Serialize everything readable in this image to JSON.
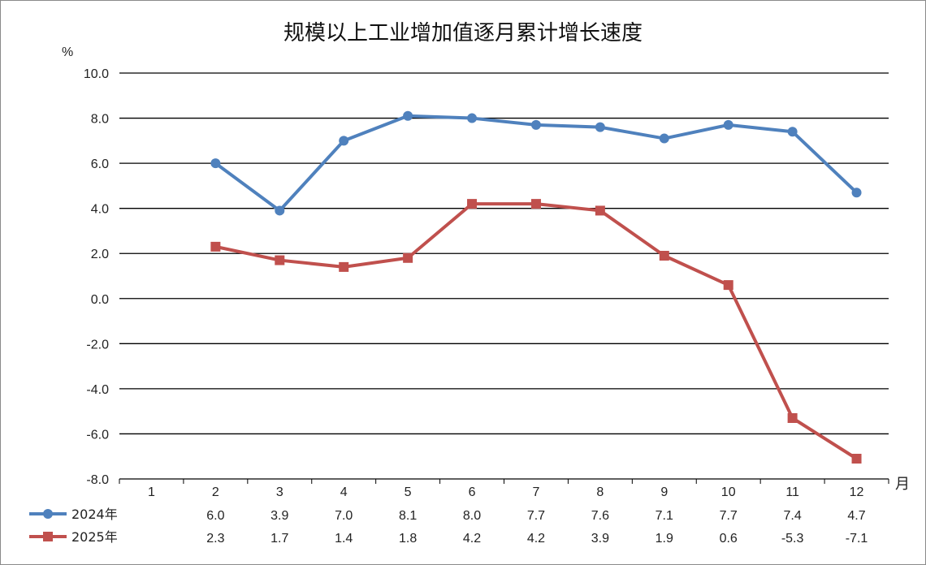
{
  "chart_data": {
    "type": "line",
    "title": "规模以上工业增加值逐月累计增长速度",
    "ylabel": "%",
    "xlabel": "月",
    "ylim": [
      -8.0,
      10.0
    ],
    "yticks": [
      "10.0",
      "8.0",
      "6.0",
      "4.0",
      "2.0",
      "0.0",
      "-2.0",
      "-4.0",
      "-6.0",
      "-8.0"
    ],
    "categories": [
      "1",
      "2",
      "3",
      "4",
      "5",
      "6",
      "7",
      "8",
      "9",
      "10",
      "11",
      "12"
    ],
    "grid": true,
    "legend_placement": "bottom-table",
    "series": [
      {
        "name": "2024年",
        "color": "#4f81bd",
        "marker": "circle",
        "values": [
          null,
          6.0,
          3.9,
          7.0,
          8.1,
          8.0,
          7.7,
          7.6,
          7.1,
          7.7,
          7.4,
          4.7
        ],
        "labels": [
          "",
          "6.0",
          "3.9",
          "7.0",
          "8.1",
          "8.0",
          "7.7",
          "7.6",
          "7.1",
          "7.7",
          "7.4",
          "4.7"
        ]
      },
      {
        "name": "2025年",
        "color": "#c0504d",
        "marker": "square",
        "values": [
          null,
          2.3,
          1.7,
          1.4,
          1.8,
          4.2,
          4.2,
          3.9,
          1.9,
          0.6,
          -5.3,
          -7.1
        ],
        "labels": [
          "",
          "2.3",
          "1.7",
          "1.4",
          "1.8",
          "4.2",
          "4.2",
          "3.9",
          "1.9",
          "0.6",
          "-5.3",
          "-7.1"
        ]
      }
    ]
  }
}
